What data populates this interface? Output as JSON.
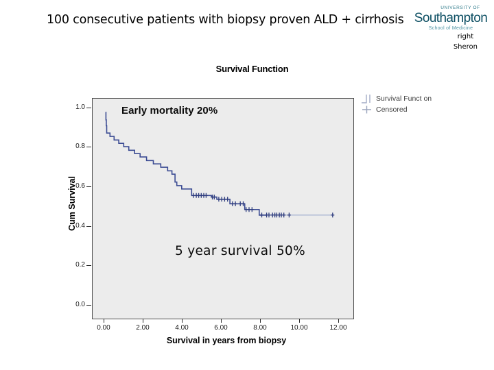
{
  "slide": {
    "title": "100 consecutive patients with biopsy proven ALD + cirrhosis",
    "credit_line1": "right",
    "credit_line2": "Sheron"
  },
  "logo": {
    "university_of": "UNIVERSITY OF",
    "name": "Southampton",
    "school": "School of Medicine",
    "color_primary": "#0d4f63",
    "color_secondary": "#2e7a8a"
  },
  "chart": {
    "title": "Survival Function",
    "xlabel": "Survival in years from biopsy",
    "ylabel": "Cum Survival",
    "annotation_early": "Early mortality 20%",
    "annotation_5yr": "5 year survival 50%",
    "legend": [
      {
        "symbol": "step-line-icon",
        "label": "Survival Funct on"
      },
      {
        "symbol": "plus-icon",
        "label": "Censored"
      }
    ],
    "x_ticks": [
      "0.00",
      "2.00",
      "4.00",
      "6.00",
      "8.00",
      "10.00",
      "12.00"
    ],
    "y_ticks": [
      "0.0",
      "0.2",
      "0.4",
      "0.6",
      "0.8",
      "1.0"
    ]
  },
  "chart_data": {
    "type": "line",
    "subtype": "kaplan-meier-step",
    "title": "Survival Function",
    "xlabel": "Survival in years from biopsy",
    "ylabel": "Cum Survival",
    "legend_position": "right",
    "grid": false,
    "plot_bg": "#ececec",
    "line_color": "#3b4b93",
    "tail_color": "#a9b3d2",
    "censor_color": "#2e3c7e",
    "xlim": [
      -0.61,
      12.74
    ],
    "ylim": [
      -0.066,
      1.047
    ],
    "x_ticks": [
      0,
      2,
      4,
      6,
      8,
      10,
      12
    ],
    "y_ticks": [
      0.0,
      0.2,
      0.4,
      0.6,
      0.8,
      1.0
    ],
    "steps": [
      [
        0.05,
        0.978
      ],
      [
        0.07,
        0.94
      ],
      [
        0.09,
        0.91
      ],
      [
        0.11,
        0.873
      ],
      [
        0.28,
        0.856
      ],
      [
        0.49,
        0.838
      ],
      [
        0.73,
        0.821
      ],
      [
        0.98,
        0.804
      ],
      [
        1.24,
        0.786
      ],
      [
        1.54,
        0.769
      ],
      [
        1.82,
        0.752
      ],
      [
        2.15,
        0.734
      ],
      [
        2.5,
        0.717
      ],
      [
        2.88,
        0.7
      ],
      [
        3.23,
        0.682
      ],
      [
        3.45,
        0.665
      ],
      [
        3.61,
        0.625
      ],
      [
        3.7,
        0.607
      ],
      [
        3.95,
        0.59
      ],
      [
        4.46,
        0.557
      ],
      [
        5.47,
        0.549
      ],
      [
        5.75,
        0.538
      ],
      [
        6.42,
        0.515
      ],
      [
        7.18,
        0.486
      ],
      [
        7.92,
        0.458
      ],
      [
        8.3,
        0.458
      ]
    ],
    "tail": [
      [
        8.3,
        0.458
      ],
      [
        11.68,
        0.458
      ]
    ],
    "censored": [
      [
        4.55,
        0.557
      ],
      [
        4.7,
        0.557
      ],
      [
        4.82,
        0.557
      ],
      [
        4.95,
        0.557
      ],
      [
        5.08,
        0.557
      ],
      [
        5.2,
        0.557
      ],
      [
        5.52,
        0.549
      ],
      [
        5.62,
        0.549
      ],
      [
        5.85,
        0.538
      ],
      [
        6.0,
        0.538
      ],
      [
        6.15,
        0.538
      ],
      [
        6.3,
        0.538
      ],
      [
        6.55,
        0.515
      ],
      [
        6.7,
        0.515
      ],
      [
        6.95,
        0.515
      ],
      [
        7.1,
        0.515
      ],
      [
        7.25,
        0.486
      ],
      [
        7.4,
        0.486
      ],
      [
        7.55,
        0.486
      ],
      [
        8.05,
        0.458
      ],
      [
        8.3,
        0.458
      ],
      [
        8.42,
        0.458
      ],
      [
        8.6,
        0.458
      ],
      [
        8.72,
        0.458
      ],
      [
        8.82,
        0.458
      ],
      [
        8.95,
        0.458
      ],
      [
        9.05,
        0.458
      ],
      [
        9.18,
        0.458
      ],
      [
        9.45,
        0.458
      ],
      [
        11.68,
        0.458
      ]
    ],
    "annotations": [
      {
        "text": "Early mortality 20%",
        "x": 0.9,
        "y": 0.97
      },
      {
        "text": "5 year survival 50%",
        "x": 3.8,
        "y": 0.28
      }
    ]
  }
}
